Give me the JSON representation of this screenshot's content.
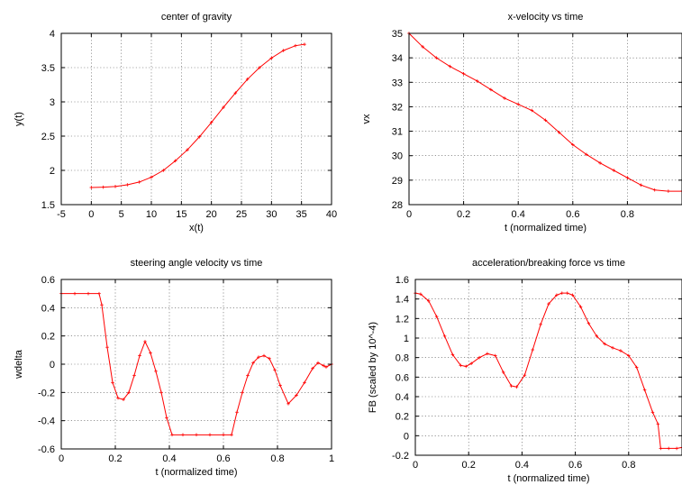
{
  "chart_data": [
    {
      "type": "line",
      "title": "center of gravity",
      "xlabel": "x(t)",
      "ylabel": "y(t)",
      "xlim": [
        -5,
        40
      ],
      "ylim": [
        1.5,
        4
      ],
      "xticks": [
        -5,
        0,
        5,
        10,
        15,
        20,
        25,
        30,
        35,
        40
      ],
      "yticks": [
        1.5,
        2,
        2.5,
        3,
        3.5,
        4
      ],
      "xtick_labels": [
        "-5",
        "0",
        "5",
        "10",
        "15",
        "20",
        "25",
        "30",
        "35",
        "40"
      ],
      "ytick_labels": [
        "1.5",
        "2",
        "2.5",
        "3",
        "3.5",
        "4"
      ],
      "grid": true,
      "series_color": "#ff0000",
      "series": [
        {
          "x": [
            0,
            2,
            4,
            6,
            8,
            10,
            12,
            14,
            16,
            18,
            20,
            22,
            24,
            26,
            28,
            30,
            32,
            34,
            35.5
          ],
          "y": [
            1.75,
            1.755,
            1.765,
            1.79,
            1.83,
            1.9,
            2.0,
            2.14,
            2.3,
            2.49,
            2.7,
            2.92,
            3.13,
            3.33,
            3.5,
            3.64,
            3.75,
            3.82,
            3.84
          ]
        }
      ]
    },
    {
      "type": "line",
      "title": "x-velocity vs time",
      "xlabel": "t (normalized time)",
      "ylabel": "vx",
      "xlim": [
        0,
        1
      ],
      "ylim": [
        28,
        35
      ],
      "xticks": [
        0,
        0.2,
        0.4,
        0.6,
        0.8
      ],
      "yticks": [
        28,
        29,
        30,
        31,
        32,
        33,
        34,
        35
      ],
      "xtick_labels": [
        "0",
        "0.2",
        "0.4",
        "0.6",
        "0.8"
      ],
      "ytick_labels": [
        "28",
        "29",
        "30",
        "31",
        "32",
        "33",
        "34",
        "35"
      ],
      "grid": true,
      "series_color": "#ff0000",
      "series": [
        {
          "x": [
            0,
            0.05,
            0.1,
            0.15,
            0.2,
            0.25,
            0.3,
            0.35,
            0.4,
            0.45,
            0.5,
            0.55,
            0.6,
            0.65,
            0.7,
            0.75,
            0.8,
            0.85,
            0.9,
            0.95,
            1.0
          ],
          "y": [
            35.0,
            34.45,
            34.0,
            33.65,
            33.35,
            33.05,
            32.7,
            32.35,
            32.1,
            31.85,
            31.45,
            30.95,
            30.45,
            30.05,
            29.7,
            29.4,
            29.1,
            28.8,
            28.6,
            28.55,
            28.55
          ]
        }
      ]
    },
    {
      "type": "line",
      "title": "steering angle velocity vs time",
      "xlabel": "t (normalized time)",
      "ylabel": "wdelta",
      "xlim": [
        0,
        1
      ],
      "ylim": [
        -0.6,
        0.6
      ],
      "xticks": [
        0,
        0.2,
        0.4,
        0.6,
        0.8,
        1
      ],
      "yticks": [
        -0.6,
        -0.4,
        -0.2,
        0,
        0.2,
        0.4,
        0.6
      ],
      "xtick_labels": [
        "0",
        "0.2",
        "0.4",
        "0.6",
        "0.8",
        "1"
      ],
      "ytick_labels": [
        "-0.6",
        "-0.4",
        "-0.2",
        "0",
        "0.2",
        "0.4",
        "0.6"
      ],
      "grid": true,
      "series_color": "#ff0000",
      "series": [
        {
          "x": [
            0,
            0.05,
            0.1,
            0.14,
            0.15,
            0.17,
            0.19,
            0.21,
            0.23,
            0.25,
            0.27,
            0.29,
            0.31,
            0.33,
            0.35,
            0.37,
            0.39,
            0.41,
            0.45,
            0.5,
            0.55,
            0.6,
            0.63,
            0.65,
            0.67,
            0.69,
            0.71,
            0.73,
            0.75,
            0.77,
            0.79,
            0.81,
            0.84,
            0.87,
            0.9,
            0.93,
            0.95,
            0.97,
            0.98,
            1.0
          ],
          "y": [
            0.5,
            0.5,
            0.5,
            0.5,
            0.42,
            0.12,
            -0.13,
            -0.24,
            -0.25,
            -0.2,
            -0.08,
            0.06,
            0.16,
            0.08,
            -0.05,
            -0.2,
            -0.38,
            -0.5,
            -0.5,
            -0.5,
            -0.5,
            -0.5,
            -0.5,
            -0.34,
            -0.2,
            -0.08,
            0.01,
            0.05,
            0.06,
            0.04,
            -0.04,
            -0.15,
            -0.28,
            -0.22,
            -0.13,
            -0.03,
            0.01,
            -0.01,
            -0.02,
            0.0
          ]
        }
      ]
    },
    {
      "type": "line",
      "title": "acceleration/breaking force vs time",
      "xlabel": "t (normalized time)",
      "ylabel": "FB (scaled by 10^-4)",
      "xlim": [
        0,
        1
      ],
      "ylim": [
        -0.2,
        1.6
      ],
      "xticks": [
        0,
        0.2,
        0.4,
        0.6,
        0.8
      ],
      "yticks": [
        -0.2,
        0,
        0.2,
        0.4,
        0.6,
        0.8,
        1,
        1.2,
        1.4,
        1.6
      ],
      "xtick_labels": [
        "0",
        "0.2",
        "0.4",
        "0.6",
        "0.8"
      ],
      "ytick_labels": [
        "-0.2",
        "0",
        "0.2",
        "0.4",
        "0.6",
        "0.8",
        "1",
        "1.2",
        "1.4",
        "1.6"
      ],
      "grid": true,
      "series_color": "#ff0000",
      "series": [
        {
          "x": [
            0,
            0.02,
            0.05,
            0.08,
            0.11,
            0.14,
            0.17,
            0.19,
            0.21,
            0.24,
            0.27,
            0.3,
            0.33,
            0.36,
            0.38,
            0.41,
            0.44,
            0.47,
            0.5,
            0.53,
            0.55,
            0.57,
            0.59,
            0.62,
            0.65,
            0.68,
            0.71,
            0.74,
            0.77,
            0.8,
            0.83,
            0.86,
            0.89,
            0.91,
            0.92,
            0.95,
            0.98,
            1.0
          ],
          "y": [
            1.46,
            1.45,
            1.38,
            1.22,
            1.02,
            0.83,
            0.72,
            0.71,
            0.74,
            0.8,
            0.84,
            0.82,
            0.65,
            0.51,
            0.5,
            0.62,
            0.88,
            1.14,
            1.35,
            1.44,
            1.46,
            1.46,
            1.44,
            1.32,
            1.15,
            1.02,
            0.94,
            0.9,
            0.87,
            0.82,
            0.7,
            0.47,
            0.24,
            0.12,
            -0.13,
            -0.13,
            -0.13,
            -0.12
          ]
        }
      ]
    }
  ]
}
